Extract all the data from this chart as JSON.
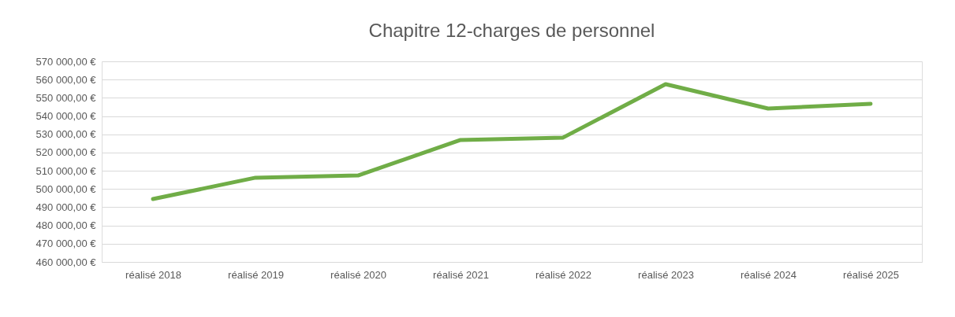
{
  "chart_data": {
    "type": "line",
    "title": "Chapitre 12-charges de personnel",
    "categories": [
      "réalisé 2018",
      "réalisé 2019",
      "réalisé 2020",
      "réalisé 2021",
      "réalisé 2022",
      "réalisé 2023",
      "réalisé 2024",
      "réalisé 2025"
    ],
    "series": [
      {
        "color": "#70ad47",
        "values": [
          494500,
          506200,
          507400,
          526900,
          528200,
          557500,
          544100,
          546700
        ]
      }
    ],
    "ylim": [
      460000,
      570000
    ],
    "yticks": [
      {
        "value": 460000,
        "label": "460 000,00 €"
      },
      {
        "value": 470000,
        "label": "470 000,00 €"
      },
      {
        "value": 480000,
        "label": "480 000,00 €"
      },
      {
        "value": 490000,
        "label": "490 000,00 €"
      },
      {
        "value": 500000,
        "label": "500 000,00 €"
      },
      {
        "value": 510000,
        "label": "510 000,00 €"
      },
      {
        "value": 520000,
        "label": "520 000,00 €"
      },
      {
        "value": 530000,
        "label": "530 000,00 €"
      },
      {
        "value": 540000,
        "label": "540 000,00 €"
      },
      {
        "value": 550000,
        "label": "550 000,00 €"
      },
      {
        "value": 560000,
        "label": "560 000,00 €"
      },
      {
        "value": 570000,
        "label": "570 000,00 €"
      }
    ],
    "grid": "y",
    "marker": "none",
    "line_style": "solid"
  }
}
